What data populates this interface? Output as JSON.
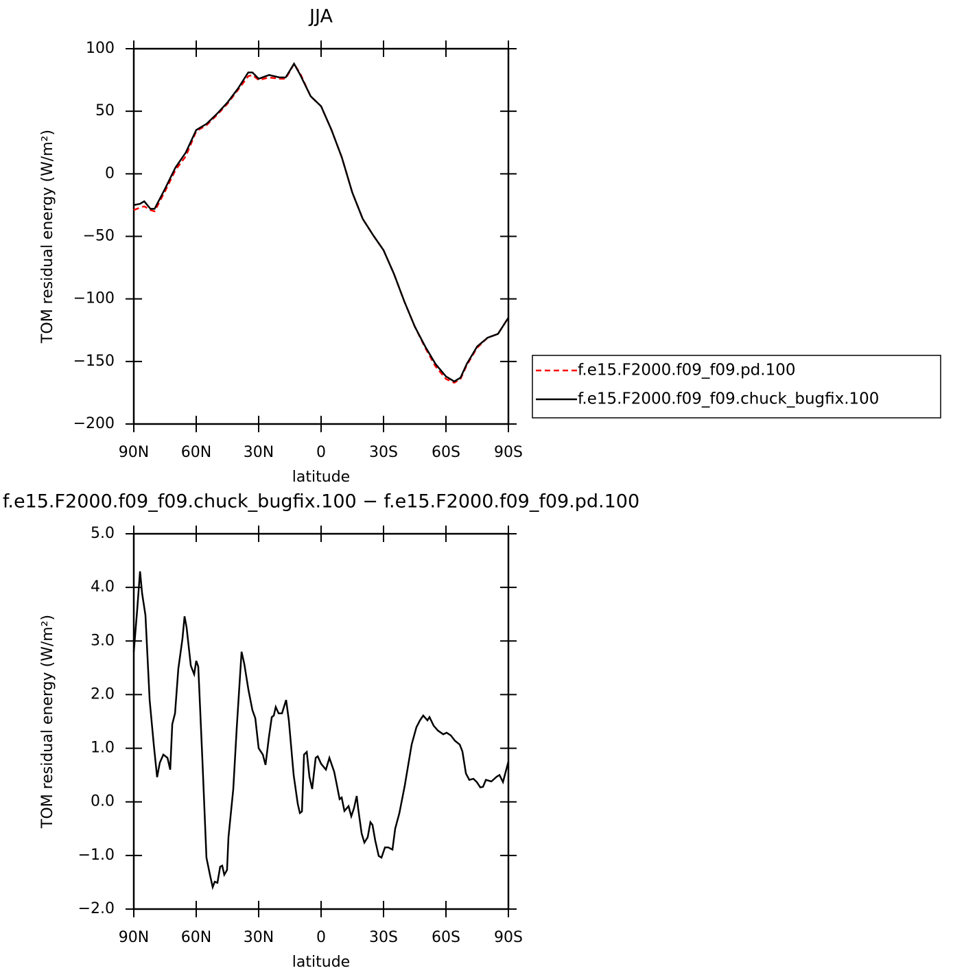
{
  "chart_data": [
    {
      "type": "line",
      "title": "JJA",
      "xlabel": "latitude",
      "ylabel": "TOM residual energy (W/m²)",
      "x": [
        90,
        87,
        85,
        82,
        80,
        75,
        70,
        65,
        60,
        55,
        50,
        45,
        40,
        35,
        33,
        30,
        25,
        20,
        17,
        13,
        10,
        5,
        0,
        -5,
        -10,
        -15,
        -20,
        -25,
        -30,
        -35,
        -40,
        -45,
        -50,
        -55,
        -60,
        -64,
        -67,
        -70,
        -75,
        -80,
        -85,
        -90
      ],
      "series": [
        {
          "name": "f.e15.F2000.f09_f09.pd.100",
          "color": "#ff0000",
          "line_style": "dashed",
          "values": [
            -29,
            -27,
            -26,
            -29,
            -30,
            -14,
            3,
            14,
            34,
            39,
            47,
            56,
            67,
            78,
            79,
            75,
            77,
            76,
            76,
            88,
            80,
            62,
            54,
            35,
            13,
            -15,
            -36,
            -49,
            -61,
            -80,
            -102,
            -122,
            -139,
            -154,
            -164,
            -167,
            -164,
            -153,
            -139,
            -131,
            -128,
            -115
          ]
        },
        {
          "name": "f.e15.F2000.f09_f09.chuck_bugfix.100",
          "color": "#000000",
          "line_style": "solid",
          "values": [
            -25,
            -24,
            -22,
            -28,
            -28,
            -12,
            5,
            17,
            35,
            40,
            48,
            57,
            68,
            81,
            81,
            76,
            79,
            77,
            77,
            88,
            79,
            62,
            54,
            35,
            13,
            -15,
            -36,
            -49,
            -61,
            -80,
            -102,
            -122,
            -138,
            -152,
            -162,
            -166,
            -163,
            -152,
            -138,
            -131,
            -128,
            -115
          ]
        }
      ],
      "xlim": [
        90,
        -90
      ],
      "xticks": [
        {
          "value": 90,
          "label": "90N"
        },
        {
          "value": 60,
          "label": "60N"
        },
        {
          "value": 30,
          "label": "30N"
        },
        0,
        {
          "value": -30,
          "label": "30S"
        },
        {
          "value": -60,
          "label": "60S"
        },
        {
          "value": -90,
          "label": "90S"
        }
      ],
      "ylim": [
        -200,
        100
      ],
      "yticks": [
        100,
        50,
        0,
        {
          "value": -50,
          "label": "−50"
        },
        {
          "value": -100,
          "label": "−100"
        },
        {
          "value": -150,
          "label": "−150"
        },
        {
          "value": -200,
          "label": "−200"
        }
      ],
      "grid": false,
      "legend": "right"
    },
    {
      "type": "line",
      "title": "f.e15.F2000.f09_f09.chuck_bugfix.100 − f.e15.F2000.f09_f09.pd.100",
      "xlabel": "latitude",
      "ylabel": "TOM residual energy (W/m²)",
      "x": [
        90,
        88.4,
        87.0,
        86.0,
        84.4,
        82.4,
        80.4,
        78.8,
        77.5,
        75.8,
        73.8,
        72.5,
        71.5,
        70.2,
        68.6,
        66.6,
        65.6,
        64.6,
        62.6,
        61.0,
        60.0,
        59.0,
        57.0,
        55.1,
        53.4,
        52.1,
        51.1,
        49.8,
        48.5,
        47.5,
        46.5,
        45.2,
        44.5,
        42.2,
        40.5,
        38.2,
        36.9,
        34.9,
        33.0,
        31.6,
        30.0,
        28.0,
        26.7,
        25.1,
        23.7,
        22.7,
        21.8,
        20.4,
        18.8,
        16.8,
        15.5,
        13.2,
        11.2,
        10.2,
        9.2,
        8.2,
        6.9,
        5.6,
        4.3,
        2.6,
        1.6,
        0,
        -2.3,
        -4.0,
        -6.3,
        -7.3,
        -8.9,
        -9.9,
        -11.2,
        -13.2,
        -14.5,
        -15.8,
        -17.1,
        -17.8,
        -19.5,
        -20.8,
        -22.4,
        -23.7,
        -24.7,
        -26.0,
        -27.7,
        -29.0,
        -30.7,
        -32.3,
        -34.3,
        -35.6,
        -37.6,
        -40.2,
        -43.5,
        -45.8,
        -47.5,
        -49.1,
        -51.1,
        -52.1,
        -54.1,
        -56.1,
        -58.7,
        -60.3,
        -62.3,
        -64.3,
        -66.6,
        -67.9,
        -69.6,
        -71.2,
        -73.2,
        -74.8,
        -76.5,
        -77.8,
        -79.2,
        -81.8,
        -84.4,
        -85.7,
        -87.4,
        -90
      ],
      "series": [
        {
          "name": null,
          "color": "#000000",
          "line_style": "solid",
          "values": [
            2.8,
            3.57,
            4.3,
            3.89,
            3.48,
            1.9,
            1.07,
            0.46,
            0.73,
            0.88,
            0.82,
            0.6,
            1.45,
            1.65,
            2.48,
            3.05,
            3.46,
            3.25,
            2.54,
            2.38,
            2.63,
            2.52,
            0.75,
            -1.04,
            -1.36,
            -1.59,
            -1.49,
            -1.51,
            -1.21,
            -1.19,
            -1.36,
            -1.27,
            -0.66,
            0.24,
            1.39,
            2.8,
            2.57,
            2.09,
            1.71,
            1.56,
            1.0,
            0.88,
            0.69,
            1.2,
            1.58,
            1.61,
            1.77,
            1.65,
            1.65,
            1.9,
            1.52,
            0.5,
            -0.04,
            -0.21,
            -0.18,
            0.88,
            0.93,
            0.47,
            0.24,
            0.82,
            0.85,
            0.71,
            0.6,
            0.82,
            0.56,
            0.37,
            0.05,
            0.08,
            -0.17,
            -0.08,
            -0.27,
            -0.12,
            0.11,
            -0.12,
            -0.59,
            -0.76,
            -0.66,
            -0.38,
            -0.43,
            -0.72,
            -1.01,
            -1.04,
            -0.85,
            -0.85,
            -0.89,
            -0.5,
            -0.21,
            0.3,
            1.07,
            1.39,
            1.52,
            1.61,
            1.52,
            1.58,
            1.42,
            1.33,
            1.26,
            1.29,
            1.24,
            1.14,
            1.07,
            0.94,
            0.53,
            0.41,
            0.43,
            0.37,
            0.27,
            0.28,
            0.41,
            0.38,
            0.47,
            0.5,
            0.37,
            0.75
          ]
        }
      ],
      "xlim": [
        90,
        -90
      ],
      "xticks": [
        {
          "value": 90,
          "label": "90N"
        },
        {
          "value": 60,
          "label": "60N"
        },
        {
          "value": 30,
          "label": "30N"
        },
        0,
        {
          "value": -30,
          "label": "30S"
        },
        {
          "value": -60,
          "label": "60S"
        },
        {
          "value": -90,
          "label": "90S"
        }
      ],
      "ylim": [
        -2,
        5
      ],
      "yticks": [
        {
          "value": 5,
          "label": "5.0"
        },
        {
          "value": 4,
          "label": "4.0"
        },
        {
          "value": 3,
          "label": "3.0"
        },
        {
          "value": 2,
          "label": "2.0"
        },
        {
          "value": 1,
          "label": "1.0"
        },
        {
          "value": 0,
          "label": "0.0"
        },
        {
          "value": -1,
          "label": "−1.0"
        },
        {
          "value": -2,
          "label": "−2.0"
        }
      ],
      "grid": false,
      "legend": null
    }
  ]
}
